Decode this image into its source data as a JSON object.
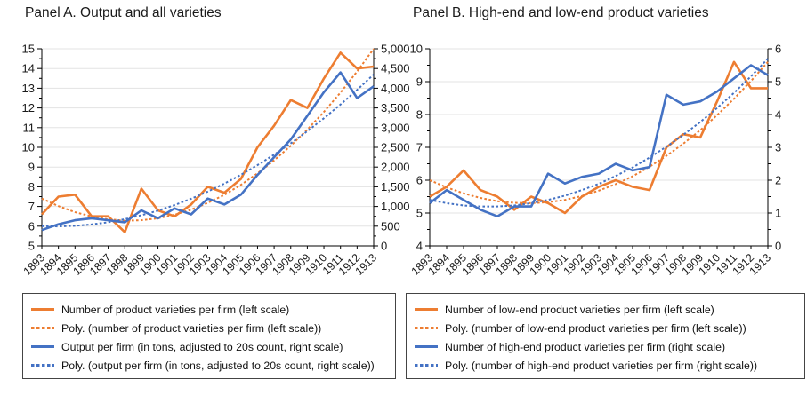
{
  "figure": {
    "background": "#ffffff",
    "accent_orange": "#ED7D31",
    "accent_blue": "#4472C4",
    "gridline_color": "#E3E3E3",
    "axis_color": "#000000"
  },
  "chart_data": [
    {
      "type": "line",
      "title": "Panel A. Output and all varieties",
      "x": [
        1893,
        1894,
        1895,
        1896,
        1897,
        1898,
        1899,
        1900,
        1901,
        1902,
        1903,
        1904,
        1905,
        1906,
        1907,
        1908,
        1909,
        1910,
        1911,
        1912,
        1913
      ],
      "left_axis": {
        "min": 5,
        "max": 15,
        "step": 1,
        "format": "plain"
      },
      "right_axis": {
        "min": 0,
        "max": 5000,
        "step": 500,
        "format": "comma"
      },
      "grid": "horizontal",
      "legend_position": "bottom-boxed",
      "series": [
        {
          "name": "Number of product varieties per firm (left scale)",
          "axis": "left",
          "style": "solid",
          "color": "#ED7D31",
          "values": [
            6.6,
            7.5,
            7.6,
            6.5,
            6.5,
            5.7,
            7.9,
            6.8,
            6.5,
            7.1,
            8.0,
            7.7,
            8.4,
            10.0,
            11.1,
            12.4,
            12.0,
            13.5,
            14.8,
            14.0,
            14.1
          ]
        },
        {
          "name": "Poly. (number of product varieties per firm (left scale))",
          "axis": "left",
          "style": "dotted",
          "color": "#ED7D31",
          "values": [
            7.4,
            7.02,
            6.71,
            6.49,
            6.35,
            6.28,
            6.3,
            6.4,
            6.58,
            6.84,
            7.18,
            7.59,
            8.1,
            8.68,
            9.34,
            10.08,
            10.9,
            11.8,
            12.78,
            13.85,
            15.0
          ]
        },
        {
          "name": "Output per firm (in tons, adjusted to 20s count, right scale)",
          "axis": "right",
          "style": "solid",
          "color": "#4472C4",
          "values": [
            400,
            550,
            650,
            700,
            650,
            600,
            900,
            700,
            950,
            800,
            1200,
            1050,
            1300,
            1800,
            2250,
            2700,
            3300,
            3900,
            4400,
            3750,
            4050
          ]
        },
        {
          "name": "Poly. (output per firm (in tons, adjusted to 20s count, right scale))",
          "axis": "right",
          "style": "dotted",
          "color": "#4472C4",
          "values": [
            500,
            494,
            508,
            544,
            600,
            677,
            776,
            895,
            1035,
            1196,
            1378,
            1581,
            1805,
            2050,
            2316,
            2602,
            2910,
            3239,
            3588,
            3959,
            4350
          ]
        }
      ]
    },
    {
      "type": "line",
      "title": "Panel B. High-end and low-end product varieties",
      "x": [
        1893,
        1894,
        1895,
        1896,
        1897,
        1898,
        1899,
        1900,
        1901,
        1902,
        1903,
        1904,
        1905,
        1906,
        1907,
        1908,
        1909,
        1910,
        1911,
        1912,
        1913
      ],
      "left_axis": {
        "min": 4,
        "max": 10,
        "step": 1,
        "format": "plain"
      },
      "right_axis": {
        "min": 0,
        "max": 6,
        "step": 1,
        "format": "plain"
      },
      "grid": "horizontal",
      "legend_position": "bottom-boxed",
      "series": [
        {
          "name": "Number of low-end product varieties per firm (left scale)",
          "axis": "left",
          "style": "solid",
          "color": "#ED7D31",
          "values": [
            5.5,
            5.8,
            6.3,
            5.7,
            5.5,
            5.1,
            5.5,
            5.3,
            5.0,
            5.5,
            5.8,
            6.0,
            5.8,
            5.7,
            7.0,
            7.4,
            7.3,
            8.4,
            9.6,
            8.8,
            8.8
          ]
        },
        {
          "name": "Poly. (number of low-end product varieties per firm (left scale))",
          "axis": "left",
          "style": "dotted",
          "color": "#ED7D31",
          "values": [
            6.0,
            5.78,
            5.6,
            5.46,
            5.36,
            5.31,
            5.3,
            5.33,
            5.4,
            5.52,
            5.68,
            5.88,
            6.12,
            6.41,
            6.74,
            7.11,
            7.52,
            7.98,
            8.48,
            9.02,
            9.6
          ]
        },
        {
          "name": "Number of high-end product varieties per firm (right scale)",
          "axis": "right",
          "style": "solid",
          "color": "#4472C4",
          "values": [
            1.3,
            1.7,
            1.4,
            1.1,
            0.9,
            1.2,
            1.2,
            2.2,
            1.9,
            2.1,
            2.2,
            2.5,
            2.3,
            2.4,
            4.6,
            4.3,
            4.4,
            4.7,
            5.1,
            5.5,
            5.2
          ]
        },
        {
          "name": "Poly. (number of high-end product varieties per firm (right scale))",
          "axis": "right",
          "style": "dotted",
          "color": "#4472C4",
          "values": [
            1.4,
            1.3,
            1.23,
            1.2,
            1.2,
            1.23,
            1.3,
            1.4,
            1.53,
            1.7,
            1.89,
            2.13,
            2.39,
            2.69,
            3.02,
            3.38,
            3.77,
            4.2,
            4.66,
            5.16,
            5.7
          ]
        }
      ]
    }
  ]
}
